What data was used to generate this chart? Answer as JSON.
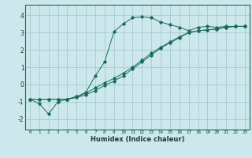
{
  "xlabel": "Humidex (Indice chaleur)",
  "background_color": "#cce8ec",
  "grid_color": "#aacdd4",
  "line_color": "#1a6b5a",
  "xlim": [
    -0.5,
    23.5
  ],
  "ylim": [
    -2.6,
    4.6
  ],
  "xticks": [
    0,
    1,
    2,
    3,
    4,
    5,
    6,
    7,
    8,
    9,
    10,
    11,
    12,
    13,
    14,
    15,
    16,
    17,
    18,
    19,
    20,
    21,
    22,
    23
  ],
  "yticks": [
    -2,
    -1,
    0,
    1,
    2,
    3,
    4
  ],
  "series1_x": [
    0,
    1,
    2,
    3,
    4,
    5,
    6,
    7,
    8,
    9,
    10,
    11,
    12,
    13,
    14,
    15,
    16,
    17,
    18,
    19,
    20,
    21,
    22,
    23
  ],
  "series1_y": [
    -0.85,
    -1.1,
    -1.7,
    -1.0,
    -0.85,
    -0.7,
    -0.45,
    0.5,
    1.3,
    3.05,
    3.5,
    3.85,
    3.9,
    3.85,
    3.6,
    3.45,
    3.3,
    3.1,
    3.3,
    3.35,
    3.3,
    3.35,
    3.35,
    3.35
  ],
  "series2_x": [
    0,
    1,
    2,
    3,
    4,
    5,
    6,
    7,
    8,
    9,
    10,
    11,
    12,
    13,
    14,
    15,
    16,
    17,
    18,
    19,
    20,
    21,
    22,
    23
  ],
  "series2_y": [
    -0.85,
    -0.85,
    -0.85,
    -0.85,
    -0.85,
    -0.75,
    -0.6,
    -0.35,
    -0.05,
    0.2,
    0.5,
    0.9,
    1.3,
    1.7,
    2.1,
    2.4,
    2.7,
    3.0,
    3.1,
    3.15,
    3.2,
    3.3,
    3.35,
    3.35
  ],
  "series3_x": [
    0,
    1,
    2,
    3,
    4,
    5,
    6,
    7,
    8,
    9,
    10,
    11,
    12,
    13,
    14,
    15,
    16,
    17,
    18,
    19,
    20,
    21,
    22,
    23
  ],
  "series3_y": [
    -0.85,
    -0.85,
    -0.85,
    -0.85,
    -0.85,
    -0.7,
    -0.5,
    -0.2,
    0.1,
    0.35,
    0.65,
    1.0,
    1.4,
    1.8,
    2.15,
    2.45,
    2.75,
    3.0,
    3.1,
    3.15,
    3.2,
    3.3,
    3.35,
    3.35
  ]
}
